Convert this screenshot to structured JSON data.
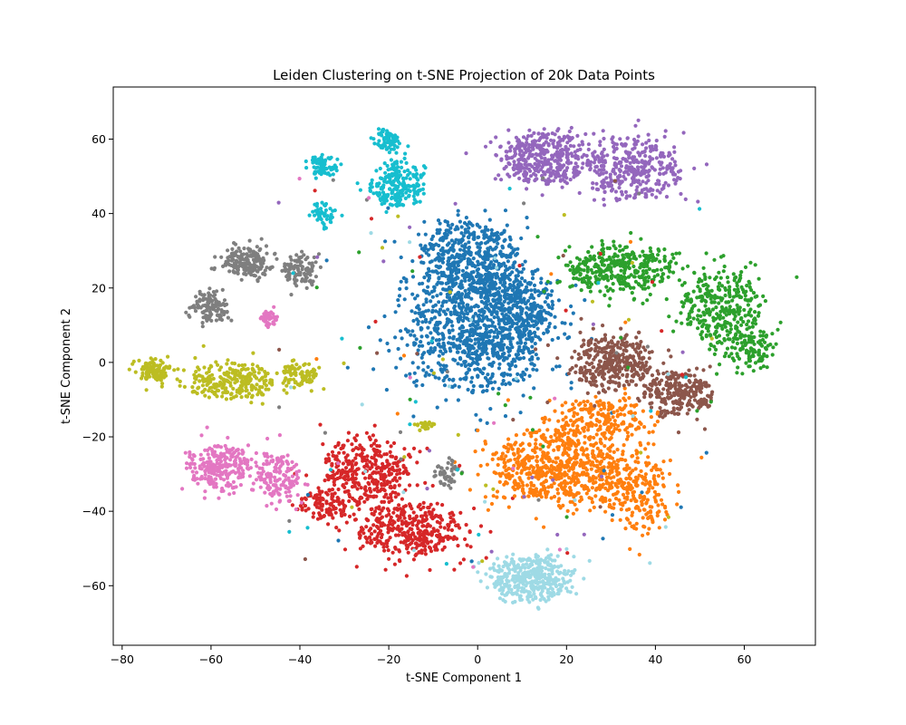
{
  "chart_data": {
    "type": "scatter",
    "title": "Leiden Clustering on t-SNE Projection of 20k Data Points",
    "xlabel": "t-SNE Component 1",
    "ylabel": "t-SNE Component 2",
    "xlim": [
      -82,
      76
    ],
    "ylim": [
      -76,
      74
    ],
    "xticks": [
      -80,
      -60,
      -40,
      -20,
      0,
      20,
      40,
      60
    ],
    "yticks": [
      -60,
      -40,
      -20,
      0,
      20,
      40,
      60
    ],
    "xtick_labels": [
      "−80",
      "−60",
      "−40",
      "−20",
      "0",
      "20",
      "40",
      "60"
    ],
    "ytick_labels": [
      "−60",
      "−40",
      "−20",
      "0",
      "20",
      "40",
      "60"
    ],
    "grid": false,
    "legend": "none",
    "total_points_approx": 20000,
    "clusters": [
      {
        "color": "#1f77b4",
        "blobs": [
          [
            -2,
            28,
            11,
            10,
            520
          ],
          [
            0,
            8,
            16,
            16,
            900
          ],
          [
            10,
            15,
            8,
            10,
            250
          ]
        ]
      },
      {
        "color": "#ff7f0e",
        "blobs": [
          [
            18,
            -28,
            14,
            10,
            650
          ],
          [
            35,
            -35,
            8,
            10,
            250
          ],
          [
            28,
            -15,
            10,
            6,
            200
          ]
        ]
      },
      {
        "color": "#2ca02c",
        "blobs": [
          [
            32,
            25,
            12,
            6,
            350
          ],
          [
            55,
            15,
            9,
            10,
            320
          ],
          [
            62,
            3,
            5,
            5,
            100
          ]
        ]
      },
      {
        "color": "#d62728",
        "blobs": [
          [
            -25,
            -30,
            10,
            10,
            380
          ],
          [
            -15,
            -45,
            12,
            7,
            350
          ],
          [
            -35,
            -38,
            5,
            4,
            80
          ]
        ]
      },
      {
        "color": "#9467bd",
        "blobs": [
          [
            15,
            55,
            10,
            7,
            380
          ],
          [
            35,
            52,
            11,
            8,
            360
          ]
        ]
      },
      {
        "color": "#8c564b",
        "blobs": [
          [
            30,
            0,
            9,
            7,
            350
          ],
          [
            45,
            -8,
            8,
            6,
            250
          ]
        ]
      },
      {
        "color": "#e377c2",
        "blobs": [
          [
            -58,
            -28,
            7,
            6,
            250
          ],
          [
            -45,
            -30,
            5,
            6,
            150
          ],
          [
            -47,
            12,
            2,
            2,
            40
          ]
        ]
      },
      {
        "color": "#7f7f7f",
        "blobs": [
          [
            -52,
            27,
            5,
            4,
            180
          ],
          [
            -40,
            25,
            4,
            4,
            100
          ],
          [
            -60,
            15,
            4,
            4,
            120
          ],
          [
            -7,
            -30,
            3,
            3,
            50
          ]
        ]
      },
      {
        "color": "#bcbd22",
        "blobs": [
          [
            -73,
            -2,
            3,
            3,
            120
          ],
          [
            -55,
            -5,
            10,
            5,
            250
          ],
          [
            -40,
            -3,
            4,
            3,
            80
          ],
          [
            -12,
            -17,
            2,
            1.5,
            30
          ]
        ]
      },
      {
        "color": "#17becf",
        "blobs": [
          [
            -35,
            53,
            3,
            3,
            80
          ],
          [
            -18,
            48,
            6,
            6,
            220
          ],
          [
            -20,
            60,
            3,
            3,
            60
          ],
          [
            -35,
            40,
            3,
            3,
            50
          ]
        ]
      },
      {
        "color": "#9edae5",
        "blobs": [
          [
            12,
            -58,
            9,
            6,
            380
          ]
        ]
      }
    ]
  }
}
